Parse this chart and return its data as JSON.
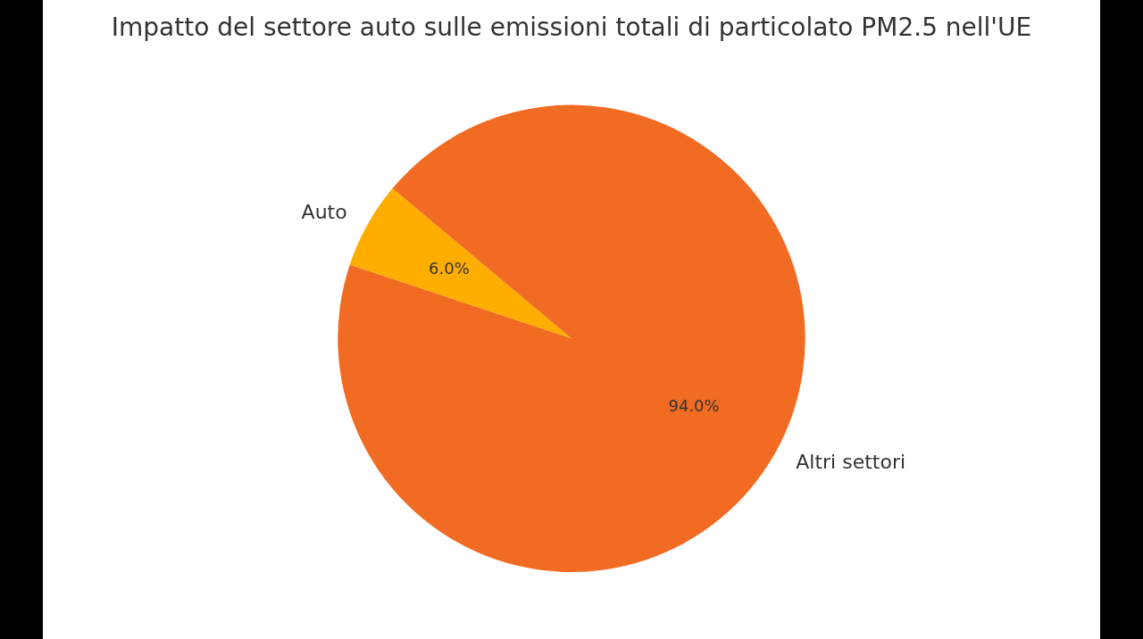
{
  "chart_data": {
    "type": "pie",
    "title": "Impatto del settore auto sulle emissioni totali di particolato PM2.5 nell'UE",
    "categories": [
      "Auto",
      "Altri settori"
    ],
    "values": [
      6.0,
      94.0
    ],
    "colors": [
      "#ffae00",
      "#f26b23"
    ],
    "value_labels": [
      "6.0%",
      "94.0%"
    ],
    "legend": false
  }
}
